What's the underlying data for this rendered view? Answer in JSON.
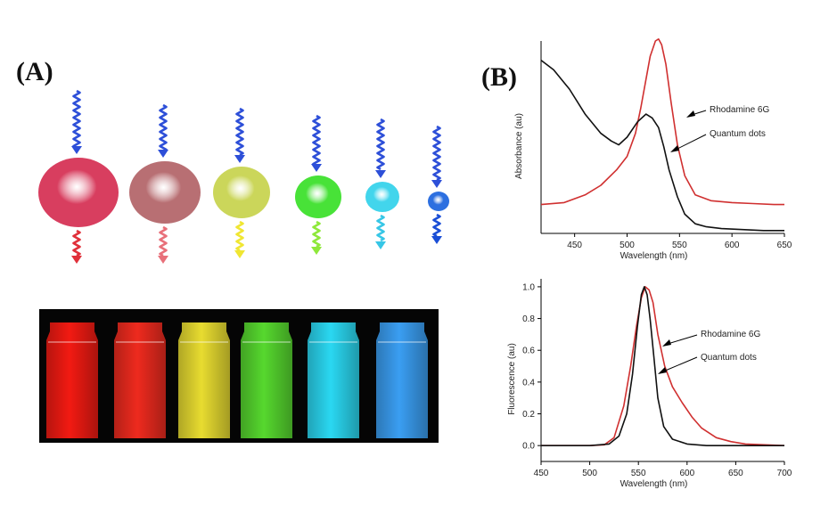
{
  "panel_a": {
    "label": "(A)",
    "dots": [
      {
        "color": "#d83e5f",
        "emit": "#e0303a"
      },
      {
        "color": "#b86f73",
        "emit": "#e8707a"
      },
      {
        "color": "#cbd65a",
        "emit": "#f0e632"
      },
      {
        "color": "#48e238",
        "emit": "#8ee83a"
      },
      {
        "color": "#42d5ec",
        "emit": "#36c6e6"
      },
      {
        "color": "#2c6fe0",
        "emit": "#1a4ed6"
      }
    ],
    "excitation_color": "#2d4fd8",
    "vials": [
      "#f21a12",
      "#ee2a1e",
      "#e8dc30",
      "#56d82e",
      "#2ad8f2",
      "#3a9ef2"
    ]
  },
  "panel_b": {
    "label": "(B)"
  },
  "chart_data": [
    {
      "type": "line",
      "title": "",
      "xlabel": "Wavelength (nm)",
      "ylabel": "Absorbance (au)",
      "xlim": [
        418,
        650
      ],
      "ylim": [
        0,
        1
      ],
      "xticks": [
        450,
        500,
        550,
        600,
        650
      ],
      "ytick_labels": false,
      "colors": {
        "Rhodamine 6G": "#d03030",
        "Quantum dots": "#111111"
      },
      "series": [
        {
          "name": "Rhodamine 6G",
          "x": [
            418,
            440,
            460,
            475,
            490,
            500,
            508,
            513,
            518,
            522,
            527,
            530,
            533,
            537,
            542,
            548,
            555,
            565,
            580,
            600,
            620,
            640,
            650
          ],
          "y": [
            0.15,
            0.16,
            0.2,
            0.25,
            0.33,
            0.4,
            0.52,
            0.65,
            0.8,
            0.92,
            1.0,
            1.01,
            0.98,
            0.88,
            0.68,
            0.46,
            0.3,
            0.2,
            0.17,
            0.16,
            0.155,
            0.15,
            0.15
          ]
        },
        {
          "name": "Quantum dots",
          "x": [
            418,
            430,
            445,
            460,
            475,
            485,
            492,
            500,
            510,
            518,
            524,
            530,
            535,
            540,
            548,
            555,
            565,
            575,
            590,
            610,
            630,
            650
          ],
          "y": [
            0.9,
            0.85,
            0.75,
            0.62,
            0.52,
            0.48,
            0.46,
            0.5,
            0.58,
            0.62,
            0.6,
            0.55,
            0.45,
            0.33,
            0.19,
            0.1,
            0.05,
            0.035,
            0.025,
            0.02,
            0.015,
            0.015
          ]
        }
      ],
      "annotations": [
        "Rhodamine 6G",
        "Quantum dots"
      ]
    },
    {
      "type": "line",
      "title": "",
      "xlabel": "Wavelength (nm)",
      "ylabel": "Fluorescence (au)",
      "xlim": [
        450,
        700
      ],
      "ylim": [
        -0.1,
        1.05
      ],
      "xticks": [
        450,
        500,
        550,
        600,
        650,
        700
      ],
      "yticks": [
        0.0,
        0.2,
        0.4,
        0.6,
        0.8,
        1.0
      ],
      "colors": {
        "Rhodamine 6G": "#d03030",
        "Quantum dots": "#111111"
      },
      "series": [
        {
          "name": "Rhodamine 6G",
          "x": [
            450,
            500,
            515,
            525,
            535,
            542,
            548,
            553,
            557,
            561,
            565,
            570,
            577,
            585,
            595,
            605,
            615,
            630,
            645,
            660,
            680,
            700
          ],
          "y": [
            0.0,
            0.0,
            0.005,
            0.05,
            0.25,
            0.5,
            0.75,
            0.93,
            1.0,
            0.98,
            0.9,
            0.7,
            0.5,
            0.37,
            0.27,
            0.18,
            0.11,
            0.05,
            0.025,
            0.01,
            0.005,
            0.0
          ]
        },
        {
          "name": "Quantum dots",
          "x": [
            450,
            500,
            520,
            530,
            538,
            544,
            549,
            553,
            556,
            559,
            562,
            566,
            570,
            576,
            585,
            600,
            620,
            700
          ],
          "y": [
            0.0,
            0.0,
            0.01,
            0.06,
            0.2,
            0.45,
            0.75,
            0.95,
            1.0,
            0.95,
            0.8,
            0.55,
            0.3,
            0.12,
            0.04,
            0.01,
            0.0,
            0.0
          ]
        }
      ],
      "annotations": [
        "Rhodamine 6G",
        "Quantum dots"
      ]
    }
  ]
}
